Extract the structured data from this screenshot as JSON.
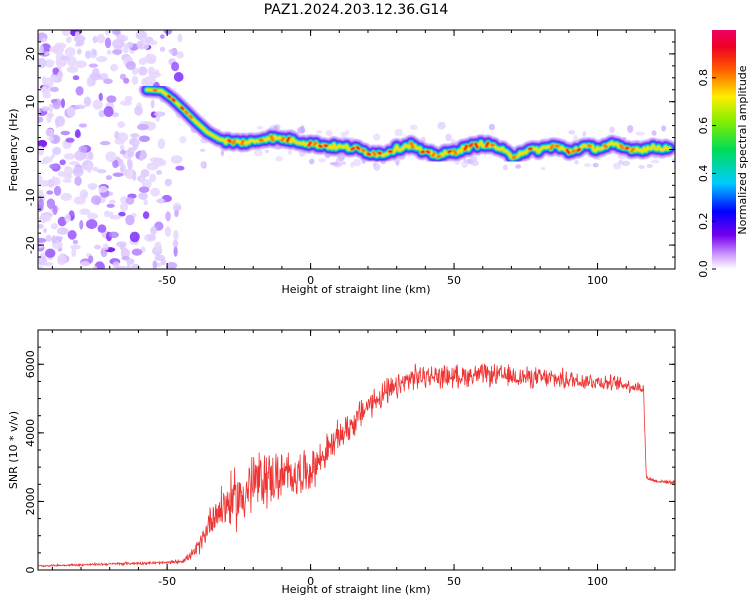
{
  "title": "PAZ1.2024.203.12.36.G14",
  "chart_data": [
    {
      "type": "heatmap",
      "xlabel": "Height of straight line (km)",
      "ylabel": "Frequency (Hz)",
      "xlim": [
        -95,
        127
      ],
      "ylim": [
        -25,
        25
      ],
      "xticks": [
        -50,
        0,
        50,
        100
      ],
      "xtick_labels": [
        "-50",
        "0",
        "50",
        "100"
      ],
      "yticks": [
        -20,
        -10,
        0,
        10,
        20
      ],
      "ytick_labels": [
        "-20",
        "-10",
        "0",
        "10",
        "20"
      ],
      "colorbar": {
        "label": "Normalized spectral amplitude",
        "range": [
          0,
          1
        ],
        "ticks": [
          0.0,
          0.2,
          0.4,
          0.6,
          0.8
        ],
        "tick_labels": [
          "0.0",
          "0.2",
          "0.4",
          "0.6",
          "0.8"
        ],
        "colormap": "rainbow (white-purple-blue-cyan-green-yellow-red-pink)"
      },
      "ridge": {
        "x": [
          -57,
          -52,
          -48,
          -44,
          -40,
          -36,
          -32,
          -28,
          -24,
          -20,
          -15,
          -10,
          -5,
          0,
          5,
          10,
          15,
          20,
          25,
          30,
          35,
          40,
          45,
          50,
          55,
          60,
          65,
          70,
          75,
          80,
          85,
          90,
          95,
          100,
          105,
          110,
          115,
          120,
          125
        ],
        "y": [
          12.5,
          12.3,
          10.5,
          8.2,
          5.8,
          3.6,
          2.2,
          1.6,
          1.5,
          1.6,
          2.5,
          2.2,
          1.8,
          1.2,
          0.8,
          0.5,
          0.3,
          -0.6,
          -1.0,
          0.2,
          1.0,
          -0.8,
          -1.2,
          -0.5,
          0.5,
          1.2,
          0.5,
          -1.5,
          -0.3,
          0.0,
          0.8,
          -0.5,
          0.6,
          0.2,
          1.0,
          0.2,
          0.0,
          0.4,
          0.3
        ]
      },
      "noise_region_x": [
        -95,
        -45
      ]
    },
    {
      "type": "line",
      "xlabel": "Height of straight line (km)",
      "ylabel": "SNR (10 * v/v)",
      "xlim": [
        -95,
        127
      ],
      "ylim": [
        0,
        7000
      ],
      "xticks": [
        -50,
        0,
        50,
        100
      ],
      "xtick_labels": [
        "-50",
        "0",
        "50",
        "100"
      ],
      "yticks": [
        0,
        2000,
        4000,
        6000
      ],
      "ytick_labels": [
        "0",
        "2000",
        "4000",
        "6000"
      ],
      "series": [
        {
          "color": "#ee3333",
          "x": [
            -95,
            -80,
            -60,
            -50,
            -45,
            -42,
            -40,
            -37,
            -35,
            -30,
            -25,
            -20,
            -15,
            -10,
            -5,
            0,
            5,
            10,
            15,
            20,
            25,
            30,
            35,
            40,
            50,
            60,
            70,
            80,
            90,
            100,
            110,
            116,
            117,
            120,
            127
          ],
          "y": [
            120,
            150,
            200,
            210,
            260,
            400,
            550,
            1000,
            1500,
            1900,
            2100,
            2500,
            2700,
            2700,
            2800,
            2900,
            3400,
            3900,
            4300,
            4800,
            5100,
            5300,
            5600,
            5650,
            5650,
            5700,
            5650,
            5600,
            5550,
            5500,
            5400,
            5300,
            2700,
            2600,
            2550
          ],
          "noise_amplitude": [
            30,
            40,
            50,
            60,
            80,
            150,
            250,
            400,
            600,
            900,
            1100,
            1200,
            1000,
            900,
            800,
            700,
            600,
            550,
            550,
            500,
            500,
            450,
            450,
            400,
            400,
            380,
            380,
            360,
            350,
            300,
            250,
            200,
            80,
            70,
            60
          ]
        }
      ]
    }
  ]
}
